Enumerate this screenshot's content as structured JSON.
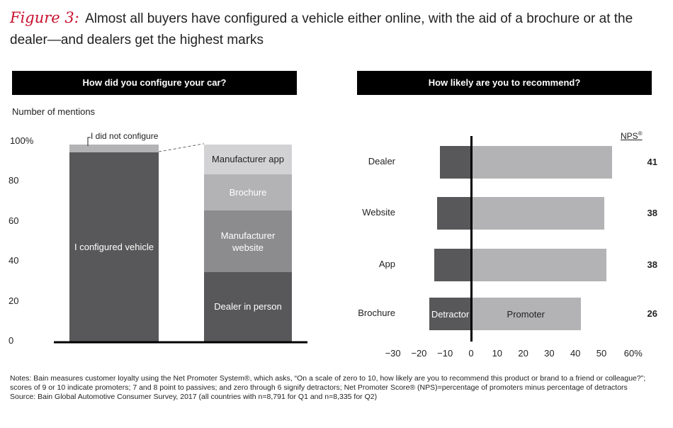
{
  "title": {
    "label": "Figure 3:",
    "text": "Almost all buyers have configured a vehicle either online, with the aid of a brochure or at the dealer—and dealers get the highest marks"
  },
  "left_panel": {
    "header": "How did you configure your car?",
    "ylabel": "Number of mentions"
  },
  "right_panel": {
    "header": "How likely are you to recommend?",
    "nps_label": "NPS",
    "nps_sup": "®"
  },
  "notes": {
    "line1": "Notes: Bain measures customer loyalty using the Net Promoter System®, which asks, “On a scale of zero to 10, how likely are you to recommend this product or brand to a friend or colleague?”; scores of 9 or 10 indicate promoters; 7 and 8 point to passives; and zero through 6 signify detractors; Net Promoter Score® (NPS)=percentage of promoters minus percentage of detractors",
    "source": "Source: Bain Global Automotive Consumer Survey, 2017 (all countries with n=8,791 for Q1 and n=8,335 for Q2)"
  },
  "colors": {
    "dark": "#58585a",
    "mid": "#8c8c8e",
    "light": "#b3b3b5",
    "lighter": "#d2d2d4",
    "red": "#c8102e"
  },
  "chart_data": [
    {
      "type": "bar",
      "stacked": true,
      "title": "How did you configure your car?",
      "ylabel": "Number of mentions",
      "ylim": [
        0,
        100
      ],
      "yticks": [
        "0",
        "20",
        "40",
        "60",
        "80",
        "100%"
      ],
      "bars": [
        {
          "segments": [
            {
              "label": "I configured vehicle",
              "value": 95
            },
            {
              "label": "I did not configure",
              "value": 4
            }
          ]
        },
        {
          "segments": [
            {
              "label": "Dealer in person",
              "value": 35
            },
            {
              "label": "Manufacturer website",
              "value": 31
            },
            {
              "label": "Brochure",
              "value": 18
            },
            {
              "label": "Manufacturer app",
              "value": 15
            }
          ]
        }
      ]
    },
    {
      "type": "bar",
      "orientation": "horizontal",
      "title": "How likely are you to recommend?",
      "xlim": [
        -30,
        60
      ],
      "xticks": [
        "−30",
        "−20",
        "−10",
        "0",
        "10",
        "20",
        "30",
        "40",
        "50",
        "60%"
      ],
      "categories": [
        "Dealer",
        "Website",
        "App",
        "Brochure"
      ],
      "series": [
        {
          "name": "Detractor",
          "values": [
            -12,
            -13,
            -14,
            -16
          ]
        },
        {
          "name": "Promoter",
          "values": [
            54,
            51,
            52,
            42
          ]
        }
      ],
      "nps": [
        "41",
        "38",
        "38",
        "26"
      ]
    }
  ]
}
